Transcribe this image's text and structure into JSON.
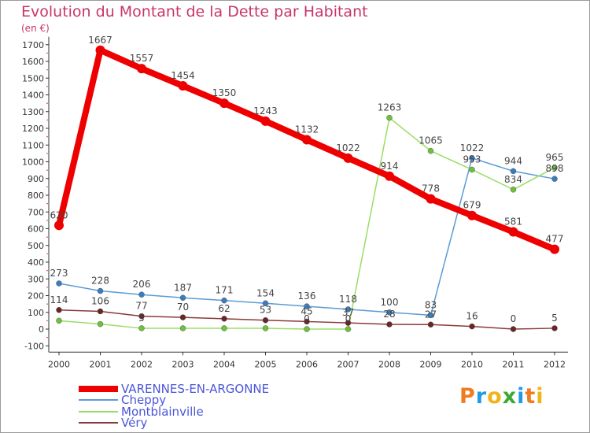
{
  "title": "Evolution du Montant de la Dette par Habitant",
  "subtitle": "(en €)",
  "logo": {
    "text": "Proxiti",
    "letter_colors": [
      "#ee7d21",
      "#1e9be4",
      "#f0b419",
      "#3aaa35",
      "#1e9be4",
      "#ee7d21",
      "#f0b419"
    ]
  },
  "chart_data": {
    "type": "line",
    "title": "Evolution du Montant de la Dette par Habitant",
    "ylabel": "(en €)",
    "xlabel": "",
    "x": [
      "2000",
      "2001",
      "2002",
      "2003",
      "2004",
      "2005",
      "2006",
      "2007",
      "2008",
      "2009",
      "2010",
      "2011",
      "2012"
    ],
    "ylim": [
      -100,
      1700
    ],
    "yticks": [
      -100,
      0,
      100,
      200,
      300,
      400,
      500,
      600,
      700,
      800,
      900,
      1000,
      1100,
      1200,
      1300,
      1400,
      1500,
      1600,
      1700
    ],
    "grid": false,
    "legend_position": "bottom-left",
    "series": [
      {
        "name": "VARENNES-EN-ARGONNE",
        "color": "#ee0000",
        "values": [
          620,
          1667,
          1557,
          1454,
          1350,
          1243,
          1132,
          1022,
          914,
          778,
          679,
          581,
          477
        ],
        "labels": [
          "620",
          "1667",
          "1557",
          "1454",
          "1350",
          "1243",
          "1132",
          "1022",
          "914",
          "778",
          "679",
          "581",
          "477"
        ]
      },
      {
        "name": "Cheppy",
        "color": "#5b9bd5",
        "values": [
          273,
          228,
          206,
          187,
          171,
          154,
          136,
          118,
          100,
          83,
          1022,
          944,
          898
        ],
        "labels": [
          "273",
          "228",
          "206",
          "187",
          "171",
          "154",
          "136",
          "118",
          "100",
          "83",
          "1022",
          "944",
          "898"
        ]
      },
      {
        "name": "Montblainville",
        "color": "#99dd66",
        "values": [
          50,
          30,
          5,
          5,
          5,
          5,
          0,
          0,
          1263,
          1065,
          953,
          834,
          965
        ],
        "labels": [
          "",
          "",
          "5",
          "",
          "",
          "",
          "0",
          "0",
          "1263",
          "1065",
          "953",
          "834",
          "965"
        ]
      },
      {
        "name": "Véry",
        "color": "#8b3a3a",
        "values": [
          114,
          106,
          77,
          70,
          62,
          53,
          45,
          37,
          28,
          27,
          16,
          0,
          5
        ],
        "labels": [
          "114",
          "106",
          "77",
          "70",
          "62",
          "53",
          "45",
          "37",
          "28",
          "27",
          "16",
          "0",
          "5"
        ]
      }
    ]
  }
}
